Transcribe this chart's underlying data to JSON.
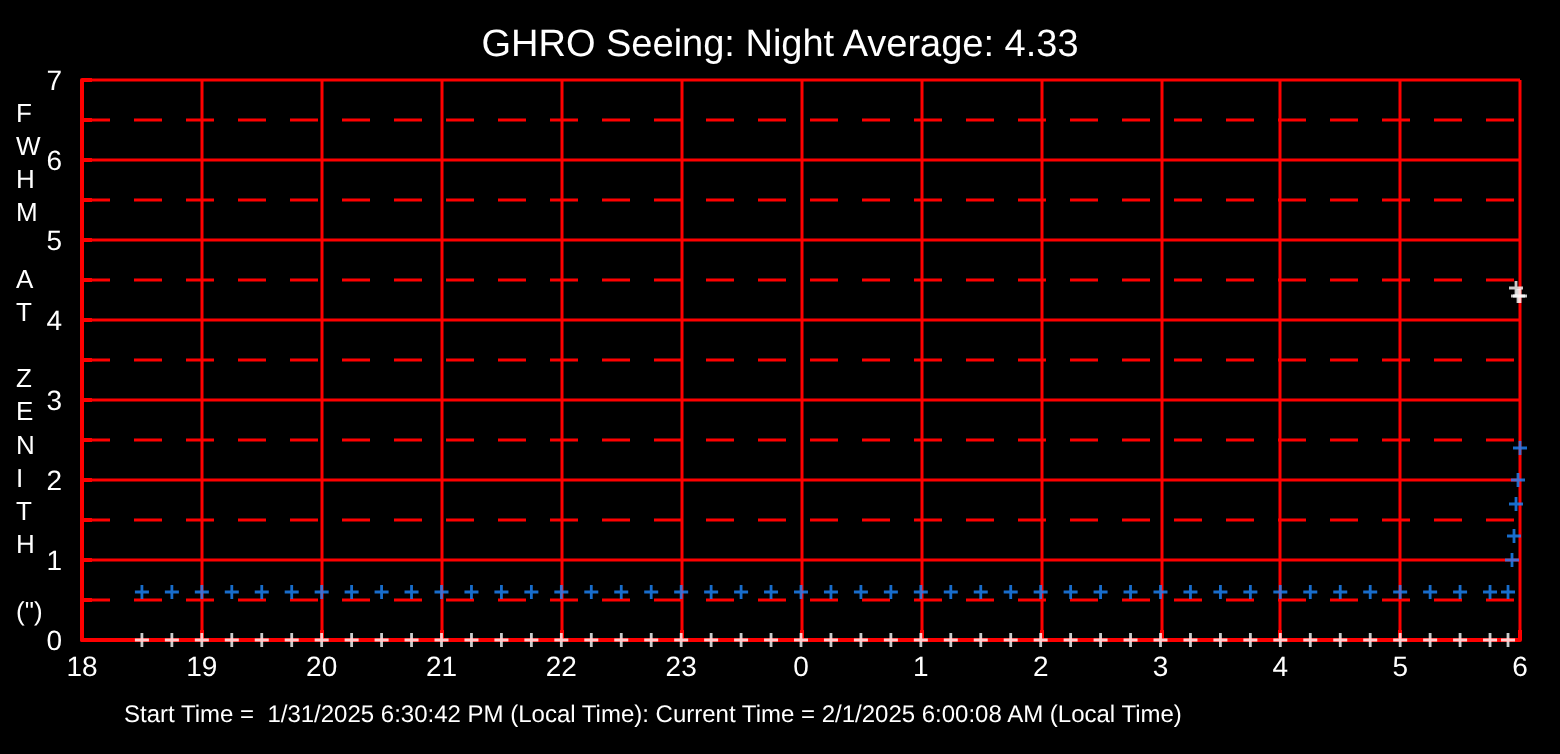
{
  "chart_data": {
    "type": "scatter",
    "title": "GHRO Seeing: Night Average: 4.33",
    "ylabel": "FWHM AT ZENITH (\")",
    "annotations": [
      "Start Time =  1/31/2025 6:30:42 PM (Local Time): Current Time = 2/1/2025 6:00:08 AM (Local Time)"
    ],
    "xlim": [
      "2025-01-31T18:00",
      "2025-02-01T06:00"
    ],
    "xticks": [
      {
        "value": "2025-01-31T18:00",
        "label": "18"
      },
      {
        "value": "2025-01-31T19:00",
        "label": "19"
      },
      {
        "value": "2025-01-31T20:00",
        "label": "20"
      },
      {
        "value": "2025-01-31T21:00",
        "label": "21"
      },
      {
        "value": "2025-01-31T22:00",
        "label": "22"
      },
      {
        "value": "2025-01-31T23:00",
        "label": "23"
      },
      {
        "value": "2025-02-01T00:00",
        "label": "0"
      },
      {
        "value": "2025-02-01T01:00",
        "label": "1"
      },
      {
        "value": "2025-02-01T02:00",
        "label": "2"
      },
      {
        "value": "2025-02-01T03:00",
        "label": "3"
      },
      {
        "value": "2025-02-01T04:00",
        "label": "4"
      },
      {
        "value": "2025-02-01T05:00",
        "label": "5"
      },
      {
        "value": "2025-02-01T06:00",
        "label": "6"
      }
    ],
    "ylim": [
      0,
      7
    ],
    "yticks": [
      0,
      {
        "value": 0.5,
        "label": null
      },
      1,
      {
        "value": 1.5,
        "label": null
      },
      2,
      {
        "value": 2.5,
        "label": null
      },
      3,
      {
        "value": 3.5,
        "label": null
      },
      4,
      {
        "value": 4.5,
        "label": null
      },
      5,
      {
        "value": 5.5,
        "label": null
      },
      6,
      {
        "value": 6.5,
        "label": null
      },
      7
    ],
    "grid": true,
    "marker": "cross",
    "series": [
      {
        "color": "#1e88ff",
        "x": [
          "2025-01-31T18:30",
          "2025-01-31T18:45",
          "2025-01-31T19:00",
          "2025-01-31T19:15",
          "2025-01-31T19:30",
          "2025-01-31T19:45",
          "2025-01-31T20:00",
          "2025-01-31T20:15",
          "2025-01-31T20:30",
          "2025-01-31T20:45",
          "2025-01-31T21:00",
          "2025-01-31T21:15",
          "2025-01-31T21:30",
          "2025-01-31T21:45",
          "2025-01-31T22:00",
          "2025-01-31T22:15",
          "2025-01-31T22:30",
          "2025-01-31T22:45",
          "2025-01-31T23:00",
          "2025-01-31T23:15",
          "2025-01-31T23:30",
          "2025-01-31T23:45",
          "2025-02-01T00:00",
          "2025-02-01T00:15",
          "2025-02-01T00:30",
          "2025-02-01T00:45",
          "2025-02-01T01:00",
          "2025-02-01T01:15",
          "2025-02-01T01:30",
          "2025-02-01T01:45",
          "2025-02-01T02:00",
          "2025-02-01T02:15",
          "2025-02-01T02:30",
          "2025-02-01T02:45",
          "2025-02-01T03:00",
          "2025-02-01T03:15",
          "2025-02-01T03:30",
          "2025-02-01T03:45",
          "2025-02-01T04:00",
          "2025-02-01T04:15",
          "2025-02-01T04:30",
          "2025-02-01T04:45",
          "2025-02-01T05:00",
          "2025-02-01T05:15",
          "2025-02-01T05:30",
          "2025-02-01T05:45",
          "2025-02-01T05:54",
          "2025-02-01T05:56",
          "2025-02-01T05:57",
          "2025-02-01T05:58",
          "2025-02-01T05:59",
          "2025-02-01T06:00"
        ],
        "values": [
          0.6,
          0.6,
          0.6,
          0.6,
          0.6,
          0.6,
          0.6,
          0.6,
          0.6,
          0.6,
          0.6,
          0.6,
          0.6,
          0.6,
          0.6,
          0.6,
          0.6,
          0.6,
          0.6,
          0.6,
          0.6,
          0.6,
          0.6,
          0.6,
          0.6,
          0.6,
          0.6,
          0.6,
          0.6,
          0.6,
          0.6,
          0.6,
          0.6,
          0.6,
          0.6,
          0.6,
          0.6,
          0.6,
          0.6,
          0.6,
          0.6,
          0.6,
          0.6,
          0.6,
          0.6,
          0.6,
          0.6,
          1,
          1.3,
          1.7,
          2,
          2.4
        ]
      },
      {
        "color": "#ffffff",
        "x": [
          "2025-01-31T18:30",
          "2025-01-31T18:45",
          "2025-01-31T19:00",
          "2025-01-31T19:15",
          "2025-01-31T19:30",
          "2025-01-31T19:45",
          "2025-01-31T20:00",
          "2025-01-31T20:15",
          "2025-01-31T20:30",
          "2025-01-31T20:45",
          "2025-01-31T21:00",
          "2025-01-31T21:15",
          "2025-01-31T21:30",
          "2025-01-31T21:45",
          "2025-01-31T22:00",
          "2025-01-31T22:15",
          "2025-01-31T22:30",
          "2025-01-31T22:45",
          "2025-01-31T23:00",
          "2025-01-31T23:15",
          "2025-01-31T23:30",
          "2025-01-31T23:45",
          "2025-02-01T00:00",
          "2025-02-01T00:15",
          "2025-02-01T00:30",
          "2025-02-01T00:45",
          "2025-02-01T01:00",
          "2025-02-01T01:15",
          "2025-02-01T01:30",
          "2025-02-01T01:45",
          "2025-02-01T02:00",
          "2025-02-01T02:15",
          "2025-02-01T02:30",
          "2025-02-01T02:45",
          "2025-02-01T03:00",
          "2025-02-01T03:15",
          "2025-02-01T03:30",
          "2025-02-01T03:45",
          "2025-02-01T04:00",
          "2025-02-01T04:15",
          "2025-02-01T04:30",
          "2025-02-01T04:45",
          "2025-02-01T05:00",
          "2025-02-01T05:15",
          "2025-02-01T05:30",
          "2025-02-01T05:45",
          "2025-02-01T05:54",
          "2025-02-01T05:58",
          "2025-02-01T05:59",
          "2025-02-01T06:00"
        ],
        "values": [
          0,
          0,
          0,
          0,
          0,
          0,
          0,
          0,
          0,
          0,
          0,
          0,
          0,
          0,
          0,
          0,
          0,
          0,
          0,
          0,
          0,
          0,
          0,
          0,
          0,
          0,
          0,
          0,
          0,
          0,
          0,
          0,
          0,
          0,
          0,
          0,
          0,
          0,
          0,
          0,
          0,
          0,
          0,
          0,
          0,
          0,
          0,
          4.4,
          4.3,
          4.3
        ]
      }
    ]
  }
}
